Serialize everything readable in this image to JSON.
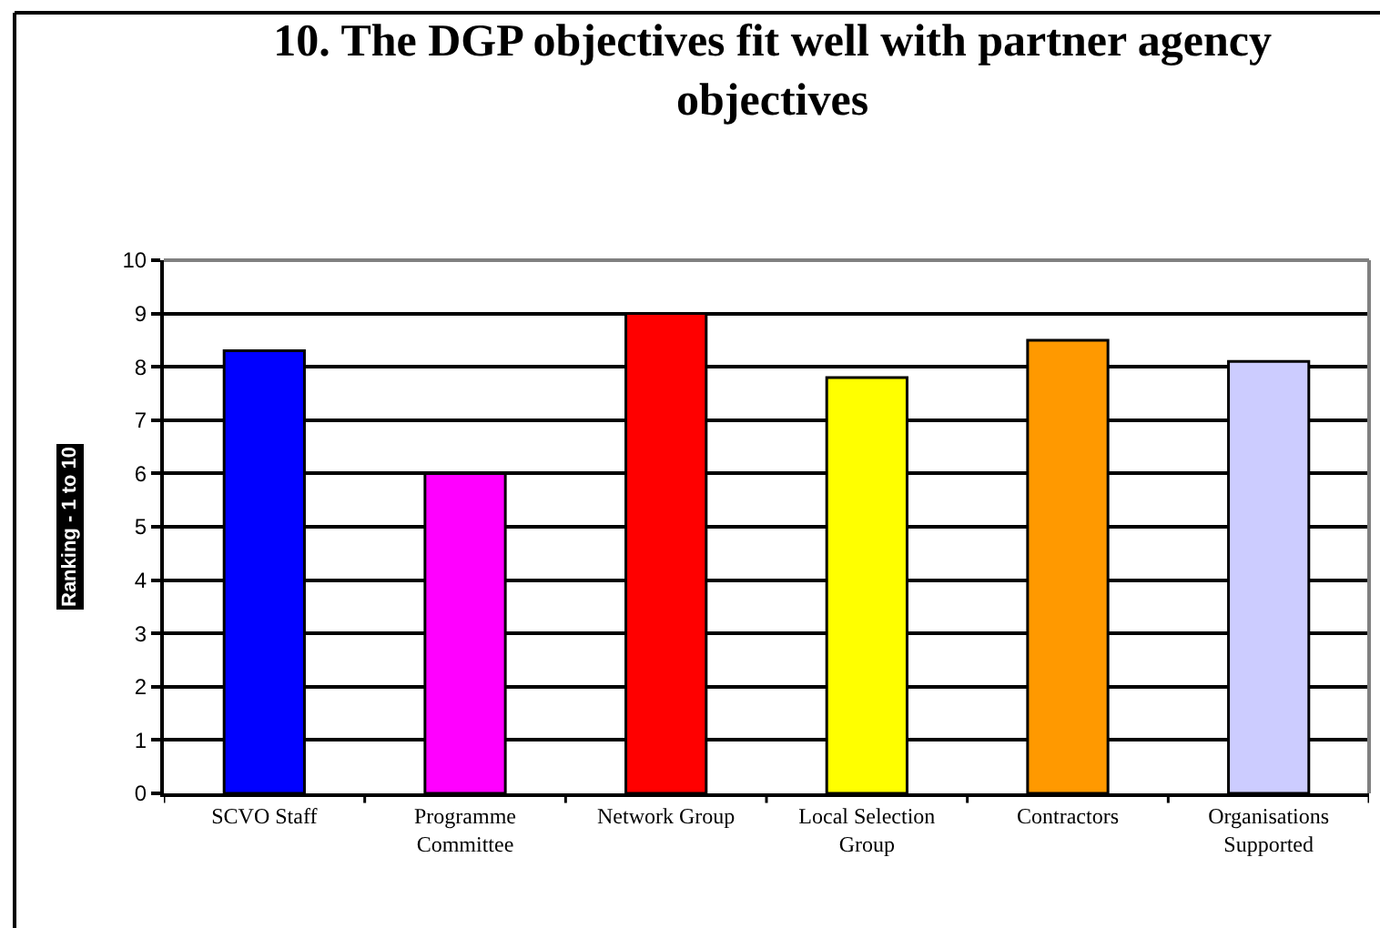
{
  "chart_data": {
    "type": "bar",
    "title": "10. The DGP objectives fit well with partner agency objectives",
    "ylabel": "Ranking - 1 to 10",
    "categories": [
      "SCVO Staff",
      "Programme Committee",
      "Network Group",
      "Local Selection Group",
      "Contractors",
      "Organisations Supported"
    ],
    "values": [
      8.3,
      6,
      9,
      7.8,
      8.5,
      8.1
    ],
    "colors": [
      "#0000ff",
      "#ff00ff",
      "#ff0000",
      "#ffff00",
      "#ff9900",
      "#ccccff"
    ],
    "ylim": [
      0,
      10
    ],
    "yticks": [
      0,
      1,
      2,
      3,
      4,
      5,
      6,
      7,
      8,
      9,
      10
    ],
    "grid": "y"
  }
}
